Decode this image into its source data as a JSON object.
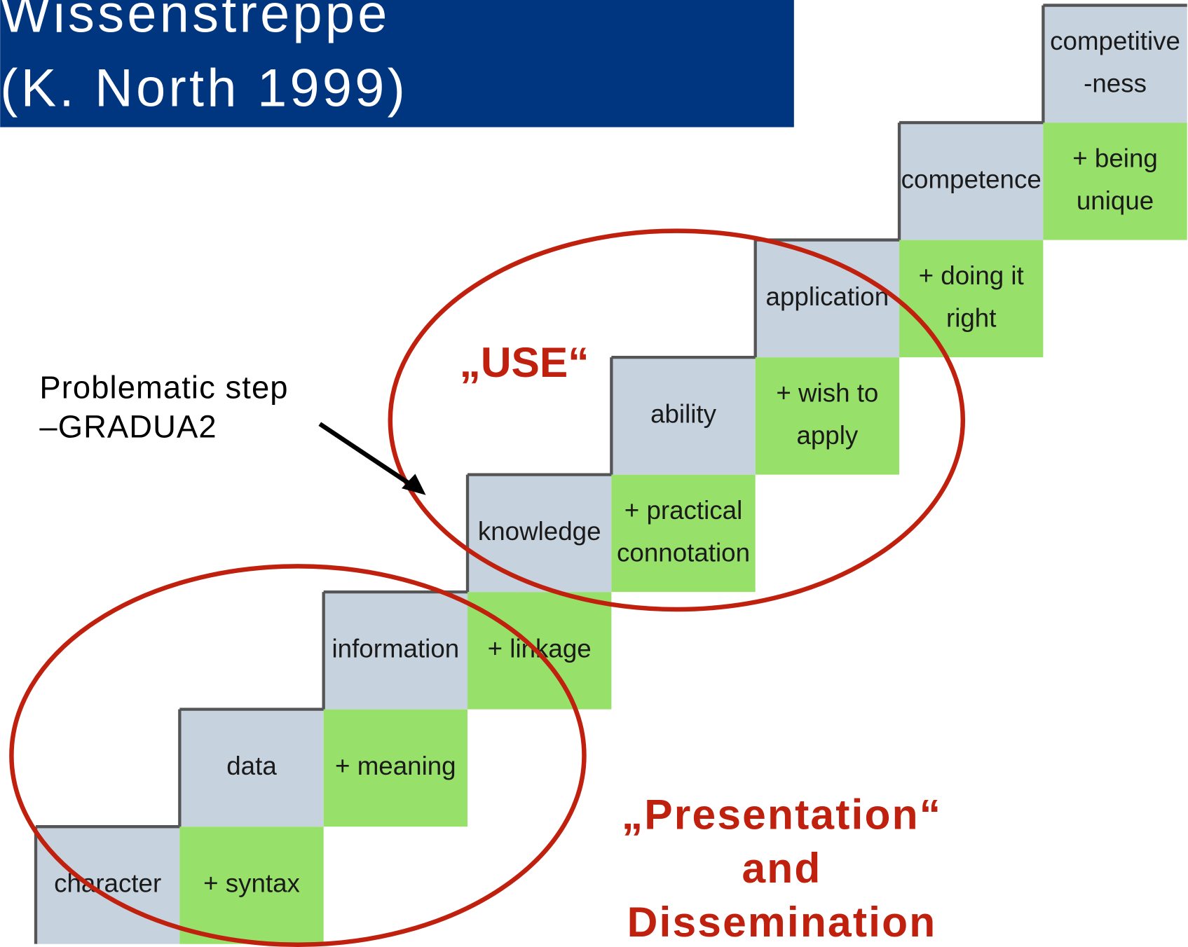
{
  "header": {
    "title": [
      "Wissenstreppe",
      "(K. North 1999)"
    ]
  },
  "steps": [
    {
      "label": [
        "character"
      ],
      "addition": [
        "+ syntax"
      ]
    },
    {
      "label": [
        "data"
      ],
      "addition": [
        "+ meaning"
      ]
    },
    {
      "label": [
        "information"
      ],
      "addition": [
        "+ linkage"
      ]
    },
    {
      "label": [
        "knowledge"
      ],
      "addition": [
        "+ practical",
        "connotation"
      ]
    },
    {
      "label": [
        "ability"
      ],
      "addition": [
        "+ wish to",
        "apply"
      ]
    },
    {
      "label": [
        "application"
      ],
      "addition": [
        "+ doing it",
        "right"
      ]
    },
    {
      "label": [
        "competence"
      ],
      "addition": [
        "+ being",
        "unique"
      ]
    },
    {
      "label": [
        "competitive",
        "-ness"
      ]
    }
  ],
  "annotations": {
    "note": [
      "Problematic step",
      "–GRADUA2"
    ],
    "use": "„USE“",
    "presentation": [
      "„Presentation“",
      "and",
      "Dissemination"
    ]
  }
}
